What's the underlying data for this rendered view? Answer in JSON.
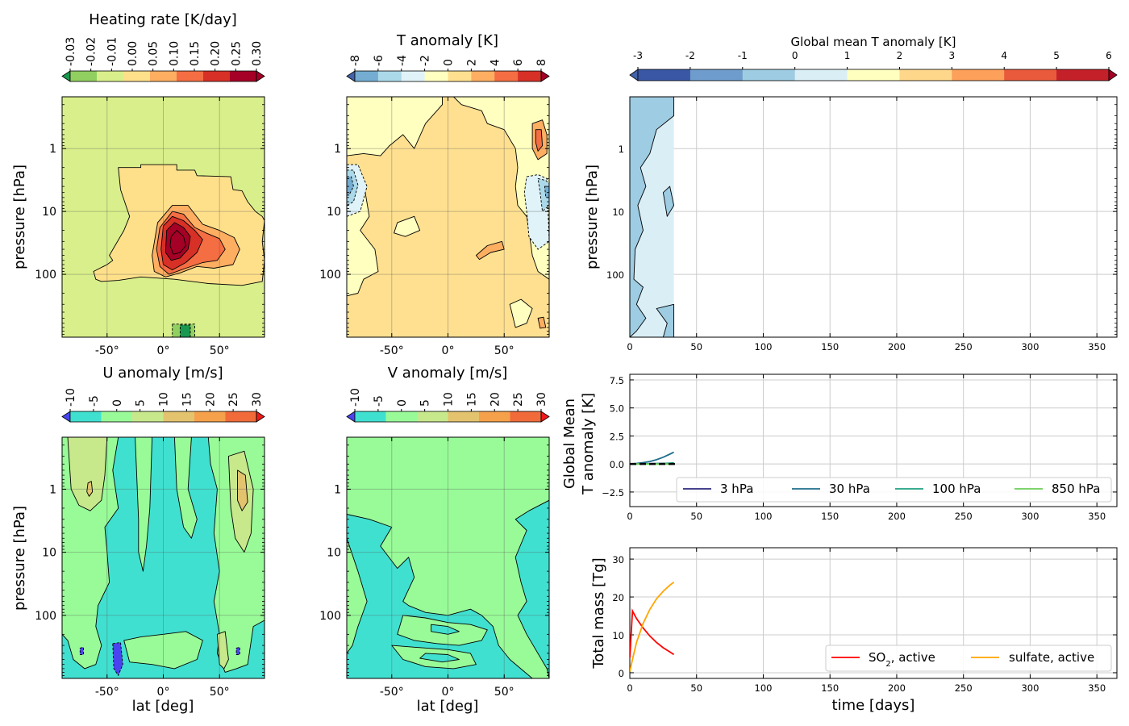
{
  "chart_data": [
    {
      "type": "heatmap",
      "subtype": "filled-contour",
      "title": "Heating  rate [K/day]",
      "xlabel": "",
      "ylabel": "pressure  [hPa]",
      "xlim": [
        -90,
        90
      ],
      "ylim": [
        1000,
        0.15
      ],
      "yscale": "log",
      "x_ticks": [
        "-50°",
        "0°",
        "50°"
      ],
      "x_tick_values": [
        -50,
        0,
        50
      ],
      "y_ticks": [
        "1",
        "10",
        "100"
      ],
      "y_tick_values": [
        1,
        10,
        100
      ],
      "grid": true,
      "colorbar": {
        "labels": [
          "-0.03",
          "-0.02",
          "-0.01",
          "0.00",
          "0.05",
          "0.10",
          "0.15",
          "0.20",
          "0.25",
          "0.30"
        ],
        "colors": [
          "#1a9850",
          "#91cf60",
          "#d9ef8b",
          "#fee08b",
          "#fdae61",
          "#f46d43",
          "#d73027",
          "#a50026",
          "#a50026"
        ],
        "extend": "both"
      },
      "background_level": "-0.01 to 0.00",
      "features": [
        {
          "region": "tropical lower stratosphere plume",
          "lat_range": [
            -50,
            75
          ],
          "p_range_hPa": [
            5,
            150
          ],
          "max_level": "0.30",
          "max_lat": 20,
          "max_p_hPa": 30
        },
        {
          "region": "cooling patch near surface",
          "lat_range": [
            5,
            30
          ],
          "p_range_hPa": [
            700,
            1000
          ],
          "min_level": "-0.03"
        }
      ]
    },
    {
      "type": "heatmap",
      "subtype": "filled-contour",
      "title": "T anomaly [K]",
      "xlabel": "",
      "ylabel": "",
      "xlim": [
        -90,
        90
      ],
      "ylim": [
        1000,
        0.15
      ],
      "yscale": "log",
      "x_ticks": [
        "-50°",
        "0°",
        "50°"
      ],
      "x_tick_values": [
        -50,
        0,
        50
      ],
      "y_ticks": [
        "1",
        "10",
        "100"
      ],
      "y_tick_values": [
        1,
        10,
        100
      ],
      "grid": true,
      "colorbar": {
        "labels": [
          "-8",
          "-6",
          "-4",
          "-2",
          "0",
          "2",
          "4",
          "6",
          "8"
        ],
        "colors": [
          "#4462a9",
          "#74add1",
          "#abd9e9",
          "#e0f3f8",
          "#ffffbf",
          "#fee090",
          "#fdae61",
          "#f46d43",
          "#d73027",
          "#a50026"
        ],
        "extend": "both"
      },
      "features": [
        {
          "region": "south pole cold anomaly",
          "lat": -85,
          "p_hPa": 3,
          "min_level": "-8"
        },
        {
          "region": "north pole cold anomaly",
          "lat": 88,
          "p_hPa": 4,
          "min_level": "-6"
        },
        {
          "region": "north pole warm anomaly",
          "lat": 80,
          "p_hPa": 0.8,
          "max_level": "6"
        },
        {
          "region": "tropical warm patch",
          "lat": 35,
          "p_hPa": 35,
          "max_level": "4"
        }
      ]
    },
    {
      "type": "heatmap",
      "subtype": "filled-contour",
      "title": "U anomaly [m/s]",
      "xlabel": "lat [deg]",
      "ylabel": "pressure  [hPa]",
      "xlim": [
        -90,
        90
      ],
      "ylim": [
        1000,
        0.15
      ],
      "yscale": "log",
      "x_ticks": [
        "-50°",
        "0°",
        "50°"
      ],
      "x_tick_values": [
        -50,
        0,
        50
      ],
      "y_ticks": [
        "1",
        "10",
        "100"
      ],
      "y_tick_values": [
        1,
        10,
        100
      ],
      "grid": true,
      "colorbar": {
        "labels": [
          "-10",
          "-5",
          "0",
          "5",
          "10",
          "15",
          "20",
          "25",
          "30"
        ],
        "colors": [
          "#4a44f0",
          "#40e0d0",
          "#98fb98",
          "#c8e88c",
          "#e3c36e",
          "#f5a04a",
          "#f06a3a",
          "#f01a1a"
        ],
        "extend": "both"
      },
      "features": [
        {
          "region": "southern jet positive",
          "lat": -65,
          "p_hPa": 1.2,
          "max_level": "15"
        },
        {
          "region": "northern jet positive",
          "lat": 70,
          "p_hPa": 1.5,
          "max_level": "15"
        },
        {
          "region": "negative patch",
          "lat": -40,
          "p_hPa": 400,
          "min_level": "-10"
        }
      ]
    },
    {
      "type": "heatmap",
      "subtype": "filled-contour",
      "title": "V anomaly [m/s]",
      "xlabel": "lat [deg]",
      "ylabel": "",
      "xlim": [
        -90,
        90
      ],
      "ylim": [
        1000,
        0.15
      ],
      "yscale": "log",
      "x_ticks": [
        "-50°",
        "0°",
        "50°"
      ],
      "x_tick_values": [
        -50,
        0,
        50
      ],
      "y_ticks": [
        "1",
        "10",
        "100"
      ],
      "y_tick_values": [
        1,
        10,
        100
      ],
      "grid": true,
      "colorbar": {
        "labels": [
          "-10",
          "-5",
          "0",
          "5",
          "10",
          "15",
          "20",
          "25",
          "30"
        ],
        "colors": [
          "#4a44f0",
          "#40e0d0",
          "#98fb98",
          "#c8e88c",
          "#e3c36e",
          "#f5a04a",
          "#f06a3a",
          "#f01a1a"
        ],
        "extend": "both"
      },
      "background_level": "-5 to 0",
      "features": [
        {
          "region": "upper domain positive",
          "lat_range": [
            -90,
            90
          ],
          "p_range_hPa": [
            0.15,
            3
          ],
          "level": "0 to 5"
        }
      ]
    },
    {
      "type": "heatmap",
      "subtype": "time-pressure filled-contour",
      "title": "Global mean T anomaly [K]",
      "xlabel": "",
      "ylabel": "pressure [hPa]",
      "xlim": [
        0,
        365
      ],
      "ylim": [
        1000,
        0.15
      ],
      "yscale": "log",
      "x_ticks": [
        "0",
        "50",
        "100",
        "150",
        "200",
        "250",
        "300",
        "350"
      ],
      "x_tick_values": [
        0,
        50,
        100,
        150,
        200,
        250,
        300,
        350
      ],
      "y_ticks": [
        "1",
        "10",
        "100"
      ],
      "y_tick_values": [
        1,
        10,
        100
      ],
      "grid": true,
      "data_extent_days": [
        0,
        33
      ],
      "colorbar": {
        "labels": [
          "-3",
          "-2",
          "-1",
          "0",
          "1",
          "2",
          "3",
          "4",
          "5",
          "6"
        ],
        "colors": [
          "#4462a9",
          "#3a57a5",
          "#6e9ccc",
          "#9ecce2",
          "#daeef6",
          "#ffffbf",
          "#fed78b",
          "#fca05a",
          "#e85a3b",
          "#c4202a",
          "#a50026"
        ],
        "extend": "both"
      },
      "dominant_levels": [
        "-1 to 0",
        "0 to 1"
      ]
    },
    {
      "type": "line",
      "title": "",
      "xlabel": "",
      "ylabel": "Global Mean\nT anomaly [K]",
      "xlim": [
        0,
        365
      ],
      "ylim": [
        -3.8,
        8
      ],
      "x_ticks": [
        "0",
        "50",
        "100",
        "150",
        "200",
        "250",
        "300",
        "350"
      ],
      "x_tick_values": [
        0,
        50,
        100,
        150,
        200,
        250,
        300,
        350
      ],
      "y_ticks": [
        "−2.5",
        "0.0",
        "2.5",
        "5.0",
        "7.5"
      ],
      "y_tick_values": [
        -2.5,
        0,
        2.5,
        5,
        7.5
      ],
      "grid": true,
      "legend": "lower-right",
      "zero_line": {
        "style": "dashed",
        "color": "#000000"
      },
      "series": [
        {
          "name": "3 hPa",
          "color": "#2e2a7d",
          "x": [
            0,
            5,
            10,
            15,
            20,
            25,
            30,
            33
          ],
          "values": [
            0.0,
            0.0,
            0.02,
            0.03,
            0.04,
            0.05,
            0.06,
            0.06
          ]
        },
        {
          "name": "30 hPa",
          "color": "#1f6e8c",
          "x": [
            0,
            5,
            10,
            15,
            20,
            25,
            30,
            33
          ],
          "values": [
            0.0,
            0.05,
            0.12,
            0.22,
            0.38,
            0.6,
            0.88,
            1.05
          ]
        },
        {
          "name": "100 hPa",
          "color": "#21a080",
          "x": [
            0,
            5,
            10,
            15,
            20,
            25,
            30,
            33
          ],
          "values": [
            0.0,
            0.0,
            0.01,
            0.02,
            0.03,
            0.05,
            0.08,
            0.1
          ]
        },
        {
          "name": "850 hPa",
          "color": "#6cce5a",
          "x": [
            0,
            5,
            10,
            15,
            20,
            25,
            30,
            33
          ],
          "values": [
            0.0,
            0.0,
            0.0,
            -0.01,
            -0.01,
            0.0,
            -0.01,
            0.0
          ]
        }
      ]
    },
    {
      "type": "line",
      "title": "",
      "xlabel": "time [days]",
      "ylabel": "Total mass [Tg]",
      "xlim": [
        0,
        365
      ],
      "ylim": [
        -1.5,
        33
      ],
      "x_ticks": [
        "0",
        "50",
        "100",
        "150",
        "200",
        "250",
        "300",
        "350"
      ],
      "x_tick_values": [
        0,
        50,
        100,
        150,
        200,
        250,
        300,
        350
      ],
      "y_ticks": [
        "0",
        "10",
        "20",
        "30"
      ],
      "y_tick_values": [
        0,
        10,
        20,
        30
      ],
      "grid": true,
      "legend": "lower-right",
      "series": [
        {
          "name": "SO",
          "name_sub": "2",
          "name_suffix": ", active",
          "color": "#ff0000",
          "x": [
            0,
            2,
            5,
            10,
            15,
            20,
            25,
            30,
            33
          ],
          "values": [
            4,
            16.3,
            14.3,
            11.8,
            9.7,
            8.0,
            6.6,
            5.5,
            4.8
          ]
        },
        {
          "name": "sulfate, active",
          "color": "#ffa500",
          "x": [
            0,
            2,
            5,
            10,
            15,
            20,
            25,
            30,
            33
          ],
          "values": [
            0.3,
            3.5,
            8.0,
            13.0,
            16.7,
            19.5,
            21.5,
            23.1,
            23.9
          ]
        }
      ]
    }
  ]
}
